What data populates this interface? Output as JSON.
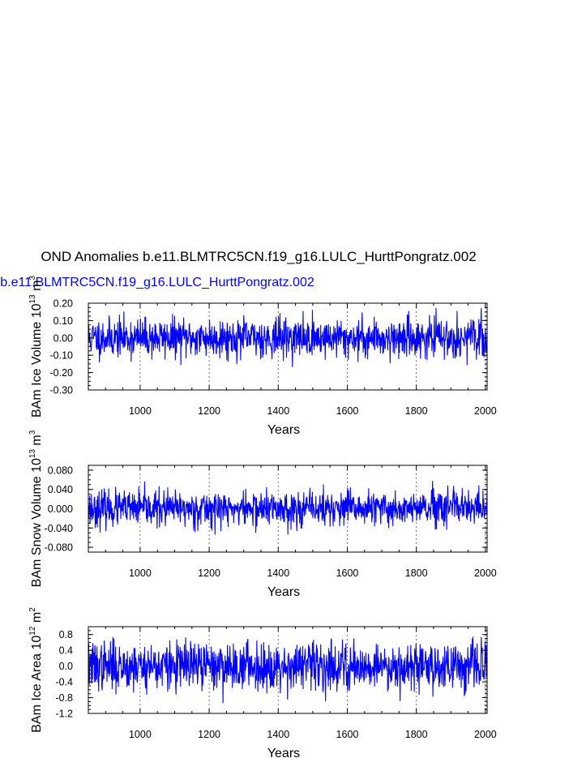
{
  "figure": {
    "title": "OND Anomalies b.e11.BLMTRC5CN.f19_g16.LULC_HurttPongratz.002",
    "subtitle": "b.e11.BLMTRC5CN.f19_g16.LULC_HurttPongratz.002"
  },
  "colors": {
    "series": "#0000ff",
    "axes": "#000000",
    "grid": "#555555",
    "subtitle": "#0000ff"
  },
  "chart_data": [
    {
      "type": "line",
      "id": "ice",
      "xlabel": "Years",
      "ylabel": {
        "main": "BAm Ice Volume 10",
        "exp": "13",
        "unit": " m",
        "unit_exp": "3"
      },
      "xlim": [
        850,
        2005
      ],
      "ylim": [
        -0.3,
        0.2
      ],
      "xticks": [
        1000,
        1200,
        1400,
        1600,
        1800,
        2000
      ],
      "yticks": [
        0.2,
        0.1,
        0.0,
        -0.1,
        -0.2,
        -0.3
      ],
      "ytick_labels": [
        "0.20",
        "0.10",
        "0.00",
        "-0.10",
        "-0.20",
        "-0.30"
      ],
      "vgrid": [
        1000,
        1200,
        1400,
        1600,
        1800,
        2000
      ],
      "grid": "dashed vertical",
      "series_seed": 11,
      "amplitude": 0.055,
      "peak": 0.18,
      "trough": -0.2
    },
    {
      "type": "line",
      "id": "snow",
      "xlabel": "Years",
      "ylabel": {
        "main": "BAm Snow Volume 10",
        "exp": "13",
        "unit": " m",
        "unit_exp": "3"
      },
      "xlim": [
        850,
        2005
      ],
      "ylim": [
        -0.09,
        0.09
      ],
      "xticks": [
        1000,
        1200,
        1400,
        1600,
        1800,
        2000
      ],
      "yticks": [
        0.08,
        0.04,
        0.0,
        -0.04,
        -0.08
      ],
      "ytick_labels": [
        "0.080",
        "0.040",
        "0.000",
        "-0.040",
        "-0.080"
      ],
      "vgrid": [
        1000,
        1200,
        1400,
        1600,
        1800,
        2000
      ],
      "grid": "dashed vertical",
      "series_seed": 23,
      "amplitude": 0.018,
      "peak": 0.06,
      "trough": -0.062
    },
    {
      "type": "line",
      "id": "area",
      "xlabel": "Years",
      "ylabel": {
        "main": "BAm Ice Area 10",
        "exp": "12",
        "unit": " m",
        "unit_exp": "2"
      },
      "xlim": [
        850,
        2005
      ],
      "ylim": [
        -1.2,
        1.0
      ],
      "xticks": [
        1000,
        1200,
        1400,
        1600,
        1800,
        2000
      ],
      "yticks": [
        0.8,
        0.4,
        0.0,
        -0.4,
        -0.8,
        -1.2
      ],
      "ytick_labels": [
        "0.8",
        "0.4",
        "0.0",
        "-0.4",
        "-0.8",
        "-1.2"
      ],
      "vgrid": [
        1000,
        1200,
        1400,
        1600,
        1800,
        2000
      ],
      "grid": "dashed vertical",
      "series_seed": 37,
      "amplitude": 0.3,
      "peak": 0.9,
      "trough": -1.0
    }
  ]
}
